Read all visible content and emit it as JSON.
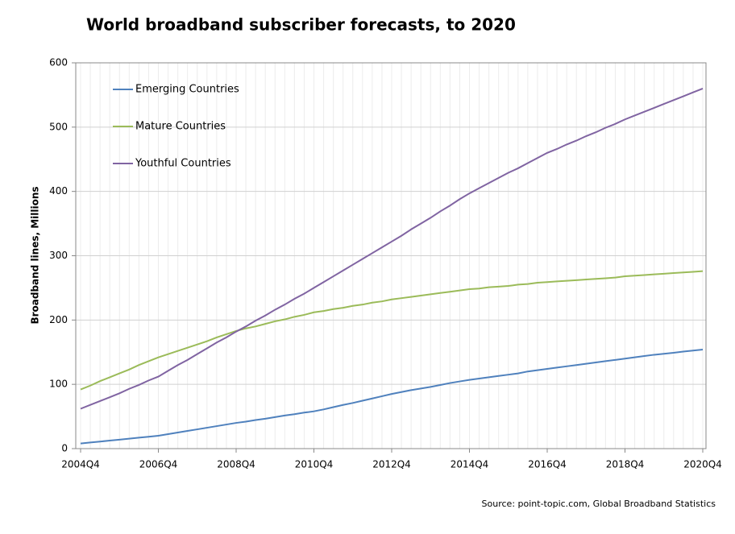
{
  "chart_data": {
    "type": "line",
    "title": "World broadband subscriber forecasts, to 2020",
    "y_label": "Broadband lines, Millions",
    "source": "Source: point-topic.com, Global Broadband Statistics",
    "categories": [
      "2004Q4",
      null,
      null,
      null,
      null,
      null,
      null,
      null,
      "2006Q4",
      null,
      null,
      null,
      null,
      null,
      null,
      null,
      "2008Q4",
      null,
      null,
      null,
      null,
      null,
      null,
      null,
      "2010Q4",
      null,
      null,
      null,
      null,
      null,
      null,
      null,
      "2012Q4",
      null,
      null,
      null,
      null,
      null,
      null,
      null,
      "2014Q4",
      null,
      null,
      null,
      null,
      null,
      null,
      null,
      "2016Q4",
      null,
      null,
      null,
      null,
      null,
      null,
      null,
      "2018Q4",
      null,
      null,
      null,
      null,
      null,
      null,
      null,
      "2020Q4"
    ],
    "series": [
      {
        "name": "Emerging Countries",
        "color": "#4f81bd",
        "values": [
          8,
          9.5,
          11,
          12.5,
          14,
          15.5,
          17,
          18.5,
          20,
          22.5,
          25,
          27.5,
          30,
          32.5,
          35,
          37.5,
          40,
          42,
          44.5,
          46.5,
          49,
          51.5,
          53.5,
          56,
          58,
          61,
          64.5,
          68,
          71,
          74.5,
          78,
          81.5,
          85,
          88,
          91,
          93.5,
          96,
          99,
          102,
          104.5,
          107,
          109,
          111,
          113,
          115,
          117,
          120,
          122,
          124,
          126,
          128,
          130,
          132,
          134,
          136,
          138,
          140,
          142,
          144,
          146,
          147.5,
          149,
          151,
          152.5,
          154
        ]
      },
      {
        "name": "Mature Countries",
        "color": "#9bbb59",
        "values": [
          92,
          98,
          105,
          111,
          117,
          123,
          130,
          136,
          142,
          147,
          152,
          157,
          162,
          167,
          173,
          178,
          183,
          187,
          190,
          194,
          198,
          201,
          205,
          208,
          212,
          214,
          217,
          219,
          222,
          224,
          227,
          229,
          232,
          234,
          236,
          238,
          240,
          242,
          244,
          246,
          248,
          249,
          251,
          252,
          253,
          255,
          256,
          258,
          259,
          260,
          261,
          262,
          263,
          264,
          265,
          266,
          268,
          269,
          270,
          271,
          272,
          273,
          274,
          275,
          276
        ]
      },
      {
        "name": "Youthful Countries",
        "color": "#8064a2",
        "values": [
          62,
          68,
          74,
          80,
          86,
          93,
          99,
          106,
          112,
          121,
          130,
          138,
          147,
          156,
          165,
          173,
          182,
          190,
          199,
          207,
          216,
          224,
          233,
          241,
          250,
          259,
          268,
          277,
          286,
          295,
          304,
          313,
          322,
          331,
          341,
          350,
          359,
          369,
          378,
          388,
          397,
          405,
          413,
          421,
          429,
          436,
          444,
          452,
          460,
          466,
          473,
          479,
          486,
          492,
          499,
          505,
          512,
          518,
          524,
          530,
          536,
          542,
          548,
          554,
          560
        ]
      }
    ],
    "ylim": [
      0,
      600
    ],
    "yticks": [
      0,
      100,
      200,
      300,
      400,
      500,
      600
    ],
    "grid": true
  }
}
